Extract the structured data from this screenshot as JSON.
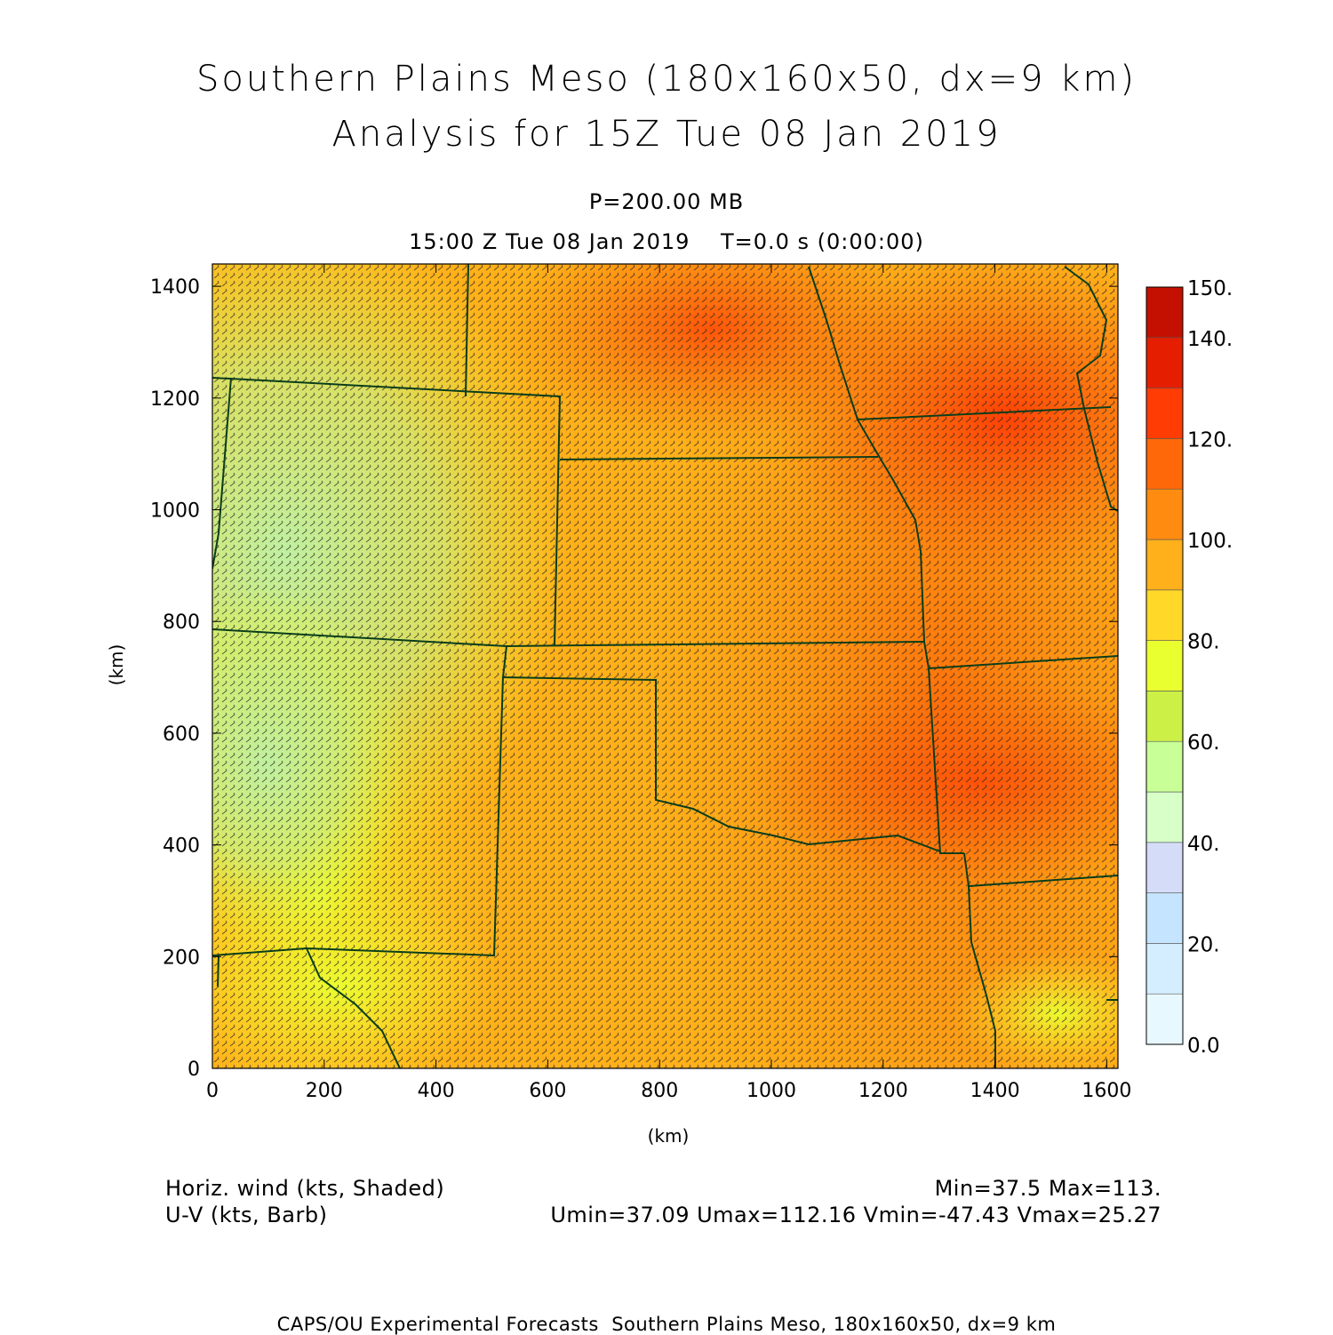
{
  "header": {
    "title_line1": "Southern Plains Meso (180x160x50, dx=9 km)",
    "title_line2": "Analysis for 15Z Tue 08 Jan 2019",
    "level": "P=200.00 MB",
    "time": "15:00 Z Tue 08 Jan 2019    T=0.0 s (0:00:00)"
  },
  "axes": {
    "xlabel": "(km)",
    "ylabel": "(km)",
    "xticks": [
      "0",
      "200",
      "400",
      "600",
      "800",
      "1000",
      "1200",
      "1400",
      "1600"
    ],
    "yticks": [
      "0",
      "200",
      "400",
      "600",
      "800",
      "1000",
      "1200",
      "1400"
    ],
    "xlim": [
      0,
      1620
    ],
    "ylim": [
      0,
      1440
    ]
  },
  "colorbar": {
    "labels": [
      "0.0",
      "20.",
      "40.",
      "60.",
      "80.",
      "100.",
      "120.",
      "140.",
      "150."
    ],
    "levels": [
      0,
      10,
      20,
      30,
      40,
      50,
      60,
      70,
      80,
      90,
      100,
      110,
      120,
      130,
      140,
      150
    ],
    "colors": [
      "#e8f8ff",
      "#d4eeff",
      "#c4e4ff",
      "#d4dcf8",
      "#d8ffc8",
      "#c8ff96",
      "#ccf046",
      "#eaff30",
      "#ffd828",
      "#ffb01a",
      "#ff8c10",
      "#ff6808",
      "#ff3c04",
      "#e61e00",
      "#c41000",
      "#a00000"
    ]
  },
  "legend": {
    "field1": "Horiz. wind (kts, Shaded)",
    "field2": "U-V (kts, Barb)",
    "minmax": "Min=37.5 Max=113.",
    "uvstats": "Umin=37.09 Umax=112.16 Vmin=-47.43 Vmax=25.27"
  },
  "footer": {
    "text": "CAPS/OU Experimental Forecasts  Southern Plains Meso, 180x160x50, dx=9 km"
  }
}
